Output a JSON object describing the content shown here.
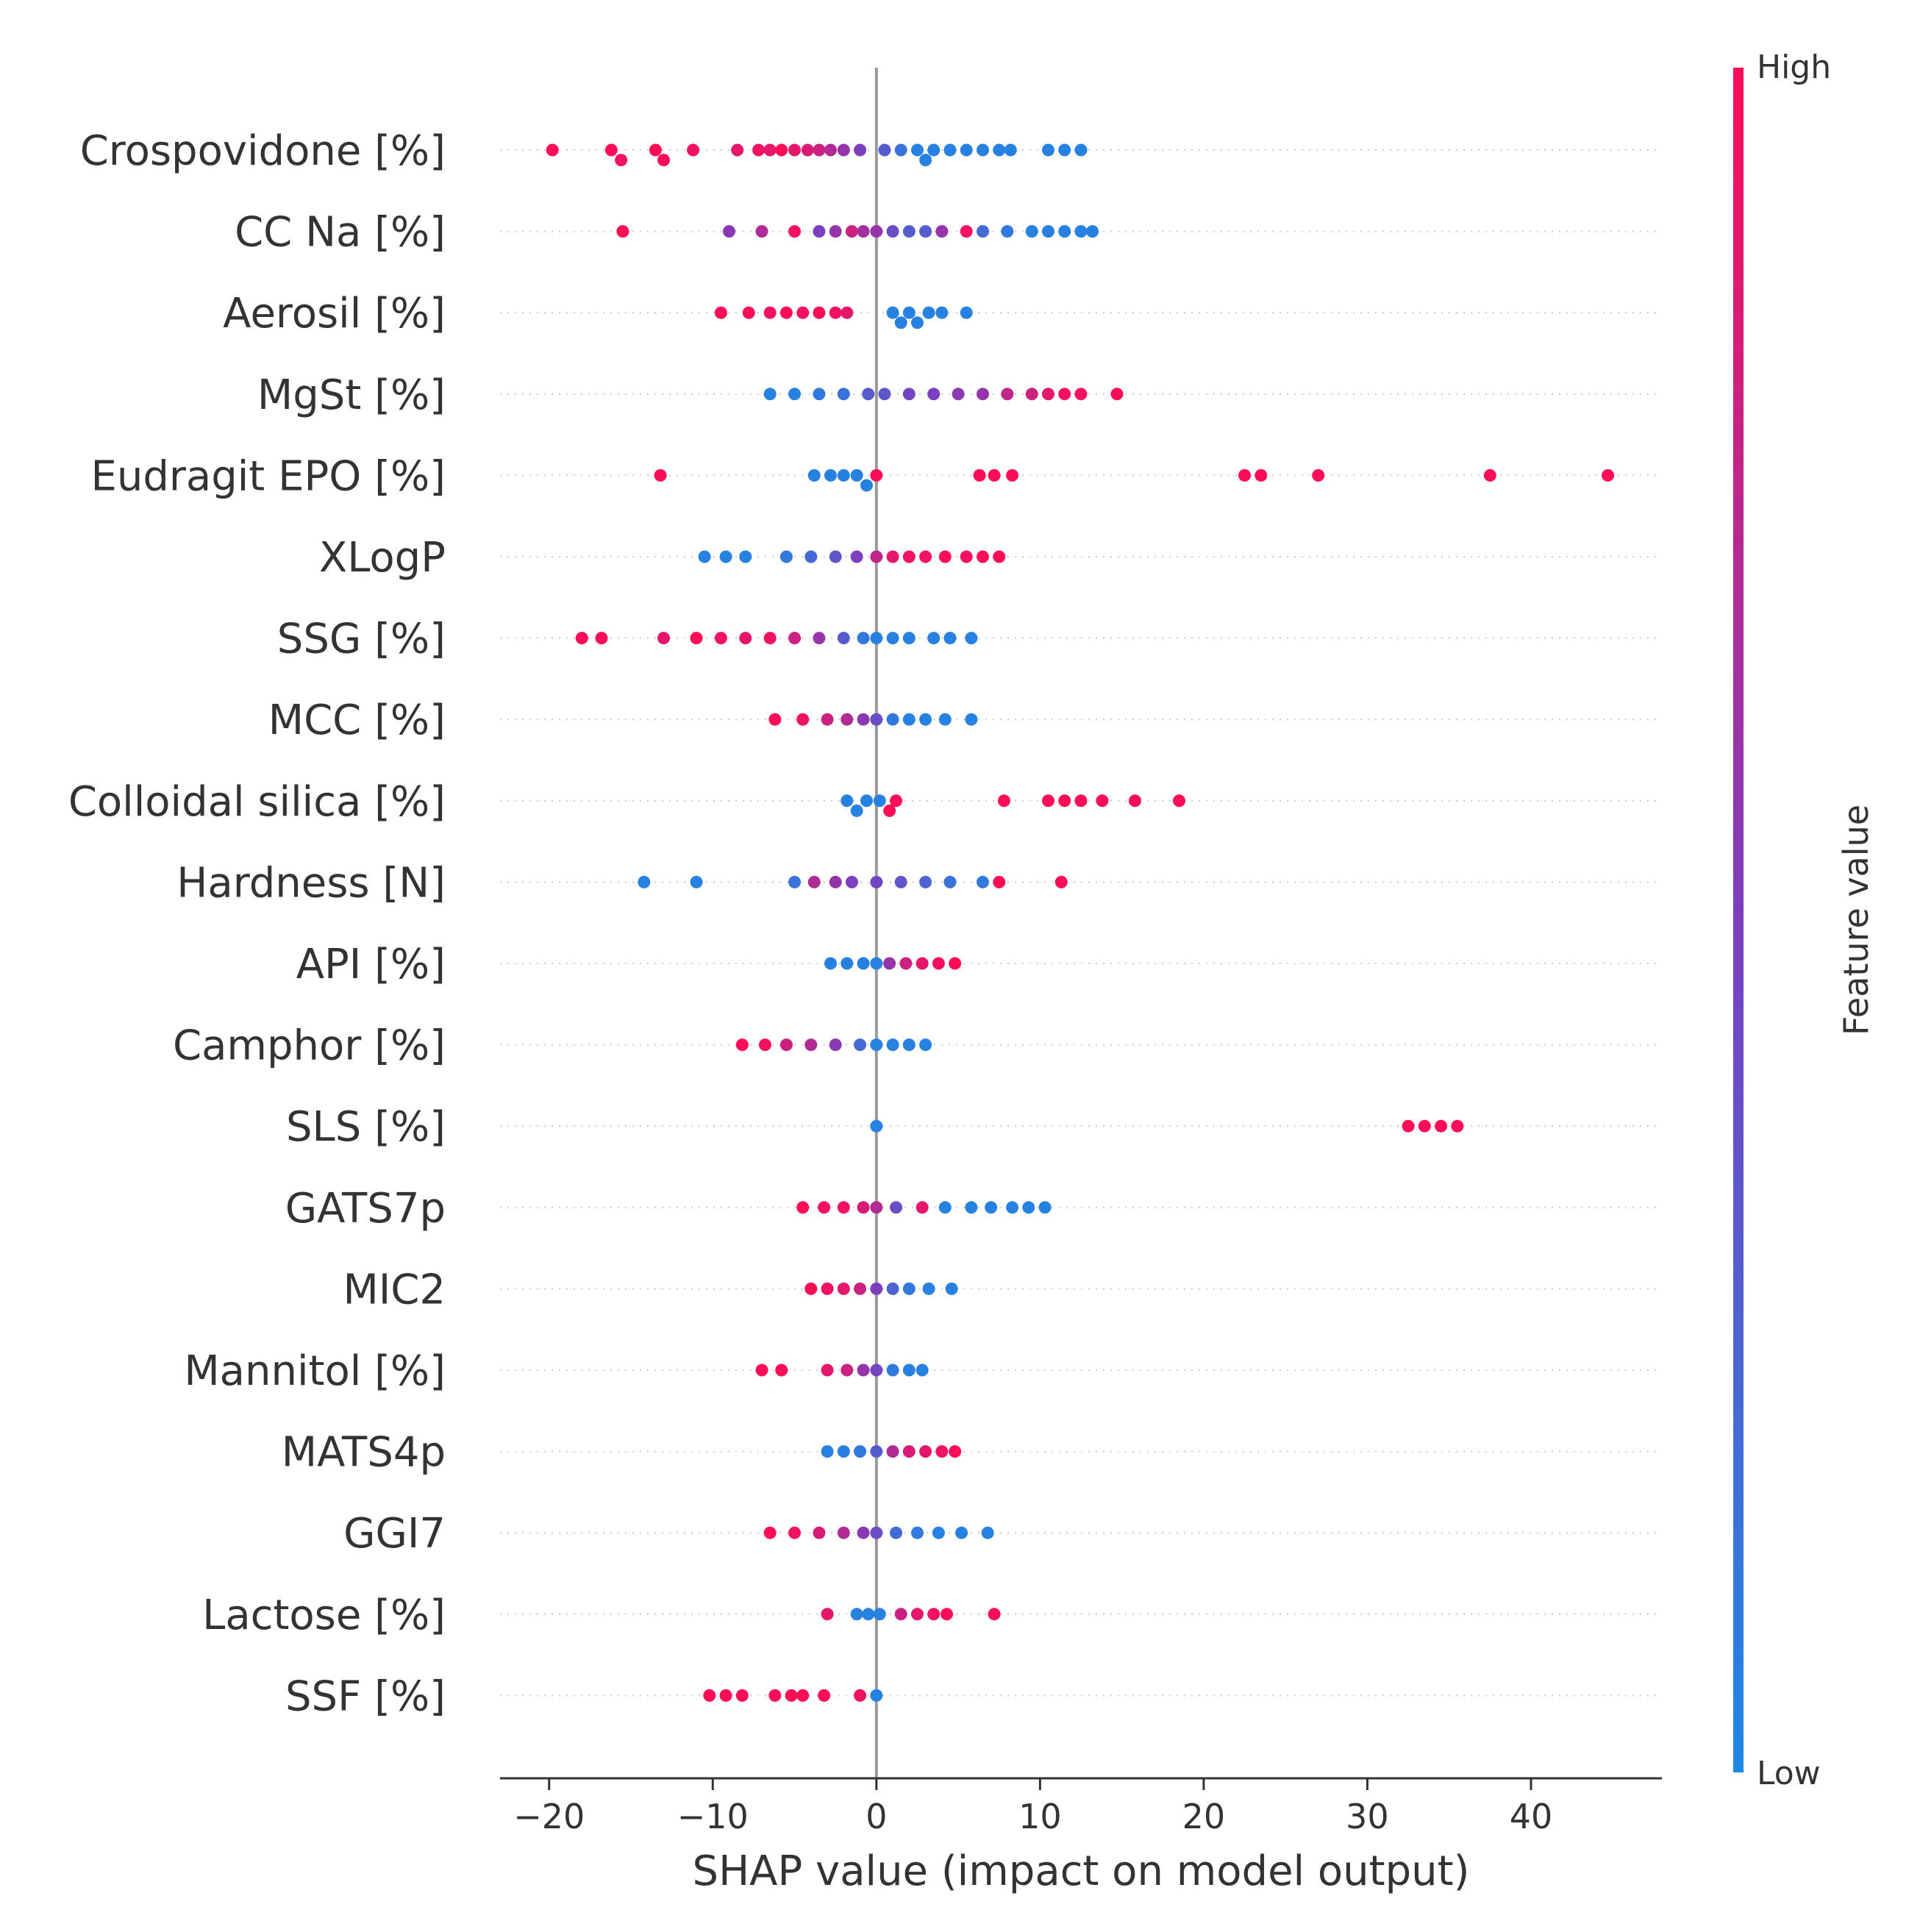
{
  "chart_data": {
    "type": "scatter",
    "subtype": "shap-beeswarm",
    "title": "",
    "xlabel": "SHAP value (impact on model output)",
    "ylabel": "",
    "xlim": [
      -23,
      48
    ],
    "xticks": [
      -20,
      -10,
      0,
      10,
      20,
      30,
      40
    ],
    "xtick_labels": [
      "−20",
      "−10",
      "0",
      "10",
      "20",
      "30",
      "40"
    ],
    "grid": false,
    "colorbar": {
      "title": "Feature value",
      "high_label": "High",
      "low_label": "Low",
      "high_color": "#ff0d57",
      "mid_color": "#7c3fbd",
      "low_color": "#1e88e5"
    },
    "features": [
      {
        "name": "Crospovidone [%]",
        "points": [
          {
            "x": -19.8,
            "v": 1.0
          },
          {
            "x": -16.2,
            "v": 1.0
          },
          {
            "x": -15.6,
            "v": 0.95
          },
          {
            "x": -13.5,
            "v": 1.0
          },
          {
            "x": -13.0,
            "v": 1.0
          },
          {
            "x": -11.2,
            "v": 0.95
          },
          {
            "x": -8.5,
            "v": 0.9
          },
          {
            "x": -7.2,
            "v": 0.95
          },
          {
            "x": -6.5,
            "v": 0.9
          },
          {
            "x": -5.8,
            "v": 1.0
          },
          {
            "x": -5.0,
            "v": 0.9
          },
          {
            "x": -4.2,
            "v": 0.85
          },
          {
            "x": -3.5,
            "v": 0.8
          },
          {
            "x": -2.8,
            "v": 0.7
          },
          {
            "x": -2.0,
            "v": 0.6
          },
          {
            "x": -1.0,
            "v": 0.5
          },
          {
            "x": 0.5,
            "v": 0.3
          },
          {
            "x": 1.5,
            "v": 0.15
          },
          {
            "x": 2.5,
            "v": 0.05
          },
          {
            "x": 3.0,
            "v": 0.05
          },
          {
            "x": 3.5,
            "v": 0.05
          },
          {
            "x": 4.5,
            "v": 0.05
          },
          {
            "x": 5.5,
            "v": 0.05
          },
          {
            "x": 6.5,
            "v": 0.05
          },
          {
            "x": 7.5,
            "v": 0.05
          },
          {
            "x": 8.2,
            "v": 0.05
          },
          {
            "x": 10.5,
            "v": 0.05
          },
          {
            "x": 11.5,
            "v": 0.05
          },
          {
            "x": 12.5,
            "v": 0.05
          }
        ]
      },
      {
        "name": "CC  Na [%]",
        "points": [
          {
            "x": -15.5,
            "v": 1.0
          },
          {
            "x": -9.0,
            "v": 0.55
          },
          {
            "x": -7.0,
            "v": 0.7
          },
          {
            "x": -5.0,
            "v": 0.95
          },
          {
            "x": -3.5,
            "v": 0.5
          },
          {
            "x": -2.5,
            "v": 0.6
          },
          {
            "x": -1.5,
            "v": 0.8
          },
          {
            "x": -0.8,
            "v": 0.65
          },
          {
            "x": 0.0,
            "v": 0.6
          },
          {
            "x": 1.0,
            "v": 0.4
          },
          {
            "x": 2.0,
            "v": 0.3
          },
          {
            "x": 3.0,
            "v": 0.3
          },
          {
            "x": 4.0,
            "v": 0.6
          },
          {
            "x": 5.5,
            "v": 0.95
          },
          {
            "x": 6.5,
            "v": 0.2
          },
          {
            "x": 8.0,
            "v": 0.1
          },
          {
            "x": 9.5,
            "v": 0.05
          },
          {
            "x": 10.5,
            "v": 0.05
          },
          {
            "x": 11.5,
            "v": 0.05
          },
          {
            "x": 12.5,
            "v": 0.05
          },
          {
            "x": 13.2,
            "v": 0.05
          }
        ]
      },
      {
        "name": "Aerosil [%]",
        "points": [
          {
            "x": -9.5,
            "v": 1.0
          },
          {
            "x": -7.8,
            "v": 1.0
          },
          {
            "x": -6.5,
            "v": 0.95
          },
          {
            "x": -5.5,
            "v": 1.0
          },
          {
            "x": -4.5,
            "v": 0.95
          },
          {
            "x": -3.5,
            "v": 1.0
          },
          {
            "x": -2.5,
            "v": 0.95
          },
          {
            "x": -1.8,
            "v": 0.9
          },
          {
            "x": 1.0,
            "v": 0.05
          },
          {
            "x": 1.5,
            "v": 0.05
          },
          {
            "x": 2.0,
            "v": 0.05
          },
          {
            "x": 2.5,
            "v": 0.05
          },
          {
            "x": 3.2,
            "v": 0.05
          },
          {
            "x": 4.0,
            "v": 0.05
          },
          {
            "x": 5.5,
            "v": 0.05
          }
        ]
      },
      {
        "name": "MgSt [%]",
        "points": [
          {
            "x": -6.5,
            "v": 0.05
          },
          {
            "x": -5.0,
            "v": 0.05
          },
          {
            "x": -3.5,
            "v": 0.1
          },
          {
            "x": -2.0,
            "v": 0.15
          },
          {
            "x": -0.5,
            "v": 0.3
          },
          {
            "x": 0.5,
            "v": 0.35
          },
          {
            "x": 2.0,
            "v": 0.45
          },
          {
            "x": 3.5,
            "v": 0.5
          },
          {
            "x": 5.0,
            "v": 0.55
          },
          {
            "x": 6.5,
            "v": 0.6
          },
          {
            "x": 8.0,
            "v": 0.75
          },
          {
            "x": 9.5,
            "v": 0.8
          },
          {
            "x": 10.5,
            "v": 0.9
          },
          {
            "x": 11.5,
            "v": 0.95
          },
          {
            "x": 12.5,
            "v": 0.95
          },
          {
            "x": 14.7,
            "v": 1.0
          }
        ]
      },
      {
        "name": "Eudragit EPO [%]",
        "points": [
          {
            "x": -13.2,
            "v": 1.0
          },
          {
            "x": -3.8,
            "v": 0.05
          },
          {
            "x": -2.8,
            "v": 0.05
          },
          {
            "x": -2.0,
            "v": 0.05
          },
          {
            "x": -1.2,
            "v": 0.05
          },
          {
            "x": -0.6,
            "v": 0.05
          },
          {
            "x": 0.0,
            "v": 1.0
          },
          {
            "x": 6.3,
            "v": 1.0
          },
          {
            "x": 7.2,
            "v": 1.0
          },
          {
            "x": 8.3,
            "v": 1.0
          },
          {
            "x": 22.5,
            "v": 1.0
          },
          {
            "x": 23.5,
            "v": 1.0
          },
          {
            "x": 27.0,
            "v": 1.0
          },
          {
            "x": 37.5,
            "v": 1.0
          },
          {
            "x": 44.7,
            "v": 1.0
          }
        ]
      },
      {
        "name": "XLogP",
        "points": [
          {
            "x": -10.5,
            "v": 0.05
          },
          {
            "x": -9.2,
            "v": 0.05
          },
          {
            "x": -8.0,
            "v": 0.05
          },
          {
            "x": -5.5,
            "v": 0.1
          },
          {
            "x": -4.0,
            "v": 0.2
          },
          {
            "x": -2.5,
            "v": 0.35
          },
          {
            "x": -1.2,
            "v": 0.5
          },
          {
            "x": 0.0,
            "v": 0.75
          },
          {
            "x": 1.0,
            "v": 0.9
          },
          {
            "x": 2.0,
            "v": 0.95
          },
          {
            "x": 3.0,
            "v": 0.95
          },
          {
            "x": 4.2,
            "v": 1.0
          },
          {
            "x": 5.5,
            "v": 0.95
          },
          {
            "x": 6.5,
            "v": 1.0
          },
          {
            "x": 7.5,
            "v": 1.0
          }
        ]
      },
      {
        "name": "SSG [%]",
        "points": [
          {
            "x": -18.0,
            "v": 1.0
          },
          {
            "x": -16.8,
            "v": 1.0
          },
          {
            "x": -13.0,
            "v": 0.9
          },
          {
            "x": -11.0,
            "v": 1.0
          },
          {
            "x": -9.5,
            "v": 0.95
          },
          {
            "x": -8.0,
            "v": 0.9
          },
          {
            "x": -6.5,
            "v": 0.95
          },
          {
            "x": -5.0,
            "v": 0.8
          },
          {
            "x": -3.5,
            "v": 0.6
          },
          {
            "x": -2.0,
            "v": 0.3
          },
          {
            "x": -0.8,
            "v": 0.1
          },
          {
            "x": 0.0,
            "v": 0.05
          },
          {
            "x": 1.0,
            "v": 0.05
          },
          {
            "x": 2.0,
            "v": 0.05
          },
          {
            "x": 3.5,
            "v": 0.05
          },
          {
            "x": 4.5,
            "v": 0.05
          },
          {
            "x": 5.8,
            "v": 0.05
          }
        ]
      },
      {
        "name": "MCC [%]",
        "points": [
          {
            "x": -6.2,
            "v": 1.0
          },
          {
            "x": -4.5,
            "v": 0.95
          },
          {
            "x": -3.0,
            "v": 0.8
          },
          {
            "x": -1.8,
            "v": 0.7
          },
          {
            "x": -0.8,
            "v": 0.55
          },
          {
            "x": 0.0,
            "v": 0.4
          },
          {
            "x": 1.0,
            "v": 0.1
          },
          {
            "x": 2.0,
            "v": 0.05
          },
          {
            "x": 3.0,
            "v": 0.05
          },
          {
            "x": 4.2,
            "v": 0.05
          },
          {
            "x": 5.8,
            "v": 0.05
          }
        ]
      },
      {
        "name": "Colloidal silica [%]",
        "points": [
          {
            "x": -1.8,
            "v": 0.05
          },
          {
            "x": -1.2,
            "v": 0.05
          },
          {
            "x": -0.6,
            "v": 0.05
          },
          {
            "x": 0.2,
            "v": 0.05
          },
          {
            "x": 0.8,
            "v": 1.0
          },
          {
            "x": 1.2,
            "v": 1.0
          },
          {
            "x": 7.8,
            "v": 1.0
          },
          {
            "x": 10.5,
            "v": 1.0
          },
          {
            "x": 11.5,
            "v": 1.0
          },
          {
            "x": 12.5,
            "v": 1.0
          },
          {
            "x": 13.8,
            "v": 1.0
          },
          {
            "x": 15.8,
            "v": 1.0
          },
          {
            "x": 18.5,
            "v": 1.0
          }
        ]
      },
      {
        "name": "Hardness [N]",
        "points": [
          {
            "x": -14.2,
            "v": 0.05
          },
          {
            "x": -11.0,
            "v": 0.05
          },
          {
            "x": -5.0,
            "v": 0.15
          },
          {
            "x": -3.8,
            "v": 0.7
          },
          {
            "x": -2.5,
            "v": 0.6
          },
          {
            "x": -1.5,
            "v": 0.5
          },
          {
            "x": 0.0,
            "v": 0.45
          },
          {
            "x": 1.5,
            "v": 0.35
          },
          {
            "x": 3.0,
            "v": 0.25
          },
          {
            "x": 4.5,
            "v": 0.15
          },
          {
            "x": 6.5,
            "v": 0.1
          },
          {
            "x": 7.5,
            "v": 1.0
          },
          {
            "x": 11.3,
            "v": 1.0
          }
        ]
      },
      {
        "name": "API [%]",
        "points": [
          {
            "x": -2.8,
            "v": 0.05
          },
          {
            "x": -1.8,
            "v": 0.05
          },
          {
            "x": -0.8,
            "v": 0.05
          },
          {
            "x": 0.0,
            "v": 0.05
          },
          {
            "x": 0.8,
            "v": 0.6
          },
          {
            "x": 1.8,
            "v": 0.8
          },
          {
            "x": 2.8,
            "v": 0.9
          },
          {
            "x": 3.8,
            "v": 0.95
          },
          {
            "x": 4.8,
            "v": 1.0
          }
        ]
      },
      {
        "name": "Camphor [%]",
        "points": [
          {
            "x": -8.2,
            "v": 1.0
          },
          {
            "x": -6.8,
            "v": 0.95
          },
          {
            "x": -5.5,
            "v": 0.8
          },
          {
            "x": -4.0,
            "v": 0.7
          },
          {
            "x": -2.5,
            "v": 0.55
          },
          {
            "x": -1.0,
            "v": 0.2
          },
          {
            "x": 0.0,
            "v": 0.05
          },
          {
            "x": 1.0,
            "v": 0.05
          },
          {
            "x": 2.0,
            "v": 0.05
          },
          {
            "x": 3.0,
            "v": 0.05
          }
        ]
      },
      {
        "name": "SLS [%]",
        "points": [
          {
            "x": 0.0,
            "v": 0.05
          },
          {
            "x": 32.5,
            "v": 1.0
          },
          {
            "x": 33.5,
            "v": 1.0
          },
          {
            "x": 34.5,
            "v": 1.0
          },
          {
            "x": 35.5,
            "v": 1.0
          }
        ]
      },
      {
        "name": "GATS7p",
        "points": [
          {
            "x": -4.5,
            "v": 1.0
          },
          {
            "x": -3.2,
            "v": 0.95
          },
          {
            "x": -2.0,
            "v": 0.95
          },
          {
            "x": -0.8,
            "v": 0.85
          },
          {
            "x": 0.0,
            "v": 0.7
          },
          {
            "x": 1.2,
            "v": 0.4
          },
          {
            "x": 2.8,
            "v": 0.9
          },
          {
            "x": 4.2,
            "v": 0.05
          },
          {
            "x": 5.8,
            "v": 0.05
          },
          {
            "x": 7.0,
            "v": 0.05
          },
          {
            "x": 8.3,
            "v": 0.05
          },
          {
            "x": 9.3,
            "v": 0.05
          },
          {
            "x": 10.3,
            "v": 0.05
          }
        ]
      },
      {
        "name": "MIC2",
        "points": [
          {
            "x": -4.0,
            "v": 1.0
          },
          {
            "x": -3.0,
            "v": 0.95
          },
          {
            "x": -2.0,
            "v": 0.9
          },
          {
            "x": -1.0,
            "v": 0.8
          },
          {
            "x": 0.0,
            "v": 0.5
          },
          {
            "x": 1.0,
            "v": 0.25
          },
          {
            "x": 2.0,
            "v": 0.1
          },
          {
            "x": 3.2,
            "v": 0.05
          },
          {
            "x": 4.6,
            "v": 0.05
          }
        ]
      },
      {
        "name": "Mannitol [%]",
        "points": [
          {
            "x": -7.0,
            "v": 1.0
          },
          {
            "x": -5.8,
            "v": 1.0
          },
          {
            "x": -3.0,
            "v": 0.9
          },
          {
            "x": -1.8,
            "v": 0.8
          },
          {
            "x": -0.8,
            "v": 0.6
          },
          {
            "x": 0.0,
            "v": 0.45
          },
          {
            "x": 1.0,
            "v": 0.1
          },
          {
            "x": 2.0,
            "v": 0.05
          },
          {
            "x": 2.8,
            "v": 0.05
          }
        ]
      },
      {
        "name": "MATS4p",
        "points": [
          {
            "x": -3.0,
            "v": 0.05
          },
          {
            "x": -2.0,
            "v": 0.05
          },
          {
            "x": -1.0,
            "v": 0.1
          },
          {
            "x": 0.0,
            "v": 0.3
          },
          {
            "x": 1.0,
            "v": 0.7
          },
          {
            "x": 2.0,
            "v": 0.85
          },
          {
            "x": 3.0,
            "v": 0.9
          },
          {
            "x": 4.0,
            "v": 0.95
          },
          {
            "x": 4.8,
            "v": 1.0
          }
        ]
      },
      {
        "name": "GGI7",
        "points": [
          {
            "x": -6.5,
            "v": 1.0
          },
          {
            "x": -5.0,
            "v": 0.95
          },
          {
            "x": -3.5,
            "v": 0.85
          },
          {
            "x": -2.0,
            "v": 0.7
          },
          {
            "x": -0.8,
            "v": 0.55
          },
          {
            "x": 0.0,
            "v": 0.4
          },
          {
            "x": 1.2,
            "v": 0.2
          },
          {
            "x": 2.5,
            "v": 0.1
          },
          {
            "x": 3.8,
            "v": 0.05
          },
          {
            "x": 5.2,
            "v": 0.05
          },
          {
            "x": 6.8,
            "v": 0.05
          }
        ]
      },
      {
        "name": "Lactose [%]",
        "points": [
          {
            "x": -3.0,
            "v": 0.9
          },
          {
            "x": -1.2,
            "v": 0.05
          },
          {
            "x": -0.5,
            "v": 0.05
          },
          {
            "x": 0.2,
            "v": 0.05
          },
          {
            "x": 1.5,
            "v": 0.8
          },
          {
            "x": 2.5,
            "v": 0.9
          },
          {
            "x": 3.5,
            "v": 0.95
          },
          {
            "x": 4.3,
            "v": 1.0
          },
          {
            "x": 7.2,
            "v": 1.0
          }
        ]
      },
      {
        "name": "SSF [%]",
        "points": [
          {
            "x": -10.2,
            "v": 1.0
          },
          {
            "x": -9.2,
            "v": 1.0
          },
          {
            "x": -8.2,
            "v": 1.0
          },
          {
            "x": -6.2,
            "v": 1.0
          },
          {
            "x": -5.2,
            "v": 1.0
          },
          {
            "x": -4.5,
            "v": 1.0
          },
          {
            "x": -3.2,
            "v": 1.0
          },
          {
            "x": -1.0,
            "v": 0.95
          },
          {
            "x": 0.0,
            "v": 0.05
          }
        ]
      }
    ]
  }
}
